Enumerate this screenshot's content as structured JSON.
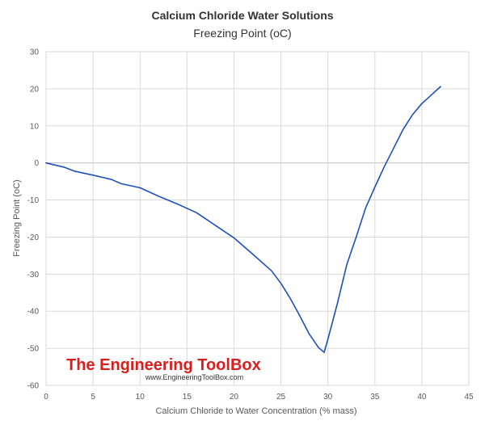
{
  "chart_data": {
    "type": "line",
    "title": "Calcium Chloride Water Solutions",
    "subtitle": "Freezing Point (oC)",
    "xlabel": "Calcium Chloride to Water Concentration (% mass)",
    "ylabel": "Freezing Point (oC)",
    "xlim": [
      0,
      45
    ],
    "ylim": [
      -60,
      30
    ],
    "x_ticks": [
      "0",
      "5",
      "10",
      "15",
      "20",
      "25",
      "30",
      "35",
      "40",
      "45"
    ],
    "y_ticks": [
      "30",
      "20",
      "10",
      "0",
      "-10",
      "-20",
      "-30",
      "-40",
      "-50",
      "-60"
    ],
    "grid": true,
    "line_color": "#1f4fb8",
    "series": [
      {
        "x": [
          0,
          2,
          3,
          5,
          7,
          8,
          10,
          12,
          14,
          16,
          18,
          20,
          22,
          24,
          25,
          26,
          27,
          28,
          29,
          29.6,
          30,
          31,
          32,
          33,
          34,
          35,
          36,
          37,
          38,
          39,
          40,
          41,
          42
        ],
        "y": [
          0,
          -1.2,
          -2.2,
          -3.3,
          -4.5,
          -5.6,
          -6.7,
          -9.0,
          -11.1,
          -13.4,
          -16.8,
          -20.2,
          -24.6,
          -29.1,
          -32.5,
          -36.6,
          -41.2,
          -46.1,
          -49.8,
          -51.1,
          -47.5,
          -38.0,
          -27.5,
          -20.1,
          -12.2,
          -6.5,
          -1.0,
          4.0,
          9.0,
          13.0,
          16.0,
          18.3,
          20.6
        ]
      }
    ]
  },
  "watermark": {
    "title": "The Engineering ToolBox",
    "url": "www.EngineeringToolBox.com",
    "color": "#d91e1e"
  }
}
